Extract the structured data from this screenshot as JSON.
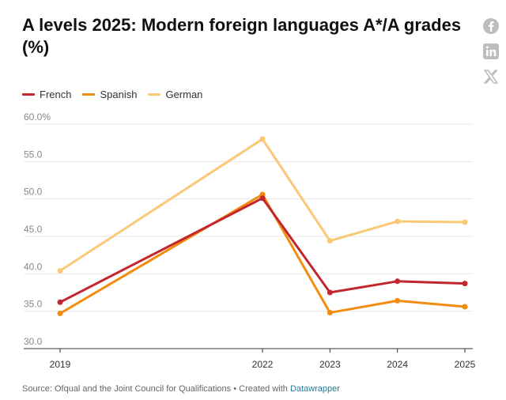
{
  "title": "A levels 2025: Modern foreign languages A*/A grades (%)",
  "share": {
    "facebook": "facebook-icon",
    "linkedin": "linkedin-icon",
    "x": "x-icon"
  },
  "footer": {
    "source": "Source: Ofqual and the Joint Council for Qualifications",
    "separator": " • ",
    "created_with": "Created with ",
    "tool": "Datawrapper"
  },
  "chart_data": {
    "type": "line",
    "title": "A levels 2025: Modern foreign languages A*/A grades (%)",
    "x": [
      "2019",
      "2022",
      "2023",
      "2024",
      "2025"
    ],
    "x_numeric": [
      2019,
      2022,
      2023,
      2024,
      2025
    ],
    "ylim": [
      30,
      60
    ],
    "yticks": [
      "30.0",
      "35.0",
      "40.0",
      "45.0",
      "50.0",
      "55.0",
      "60.0%"
    ],
    "ytick_values": [
      30,
      35,
      40,
      45,
      50,
      55,
      60
    ],
    "grid": true,
    "legend_position": "top-left",
    "series": [
      {
        "name": "French",
        "color": "#c4262e",
        "values": [
          36.2,
          50.1,
          37.5,
          39.0,
          38.7
        ]
      },
      {
        "name": "Spanish",
        "color": "#f28c0f",
        "values": [
          34.7,
          50.6,
          34.8,
          36.4,
          35.6
        ]
      },
      {
        "name": "German",
        "color": "#f9c977",
        "values": [
          40.4,
          58.0,
          44.4,
          47.0,
          46.9
        ]
      }
    ]
  }
}
